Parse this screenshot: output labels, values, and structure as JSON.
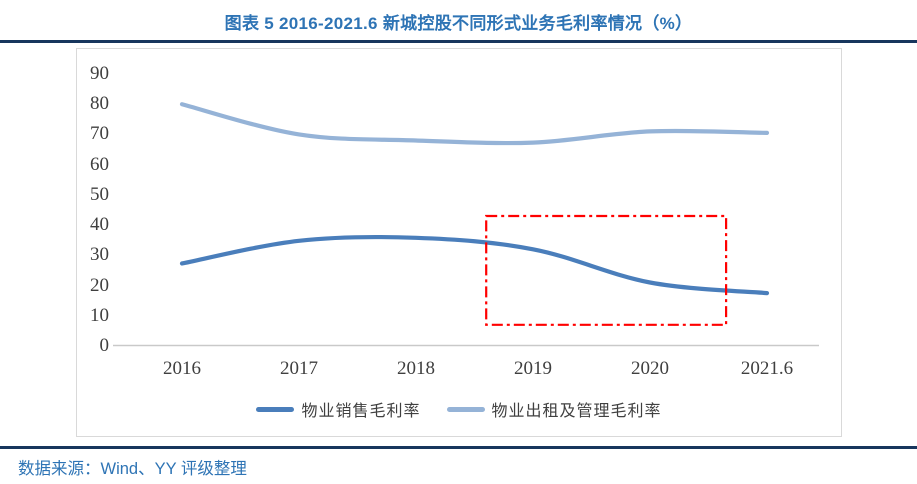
{
  "title": "图表 5 2016-2021.6 新城控股不同形式业务毛利率情况（%）",
  "footer": {
    "source_label": "数据来源：Wind、YY 评级整理"
  },
  "colors": {
    "title_blue": "#2E74B5",
    "divider_navy": "#17365D",
    "axis_text": "#3F3F3F",
    "axis_line": "#C9C9C9",
    "frame_border": "#D9D9D9",
    "annotation_red": "#FF0000"
  },
  "chart_data": {
    "type": "line",
    "categories": [
      "2016",
      "2017",
      "2018",
      "2019",
      "2020",
      "2021.6"
    ],
    "series": [
      {
        "name": "物业销售毛利率",
        "color": "#4A7EBB",
        "values": [
          27.3,
          34.8,
          35.8,
          32,
          21,
          17.5
        ]
      },
      {
        "name": "物业出租及管理毛利率",
        "color": "#95B3D7",
        "values": [
          80,
          70,
          68,
          67.3,
          71,
          70.5
        ]
      }
    ],
    "title": "图表 5 2016-2021.6 新城控股不同形式业务毛利率情况（%）",
    "xlabel": "",
    "ylabel": "",
    "ylim": [
      0,
      90
    ],
    "yticks": [
      0,
      10,
      20,
      30,
      40,
      50,
      60,
      70,
      80,
      90
    ],
    "grid": false,
    "legend_position": "bottom",
    "line_style": "smooth",
    "annotation": {
      "type": "dash-dot-rect",
      "color": "#FF0000",
      "x_index_range": [
        2.6,
        4.65
      ],
      "y_value_range": [
        7,
        43
      ]
    }
  }
}
